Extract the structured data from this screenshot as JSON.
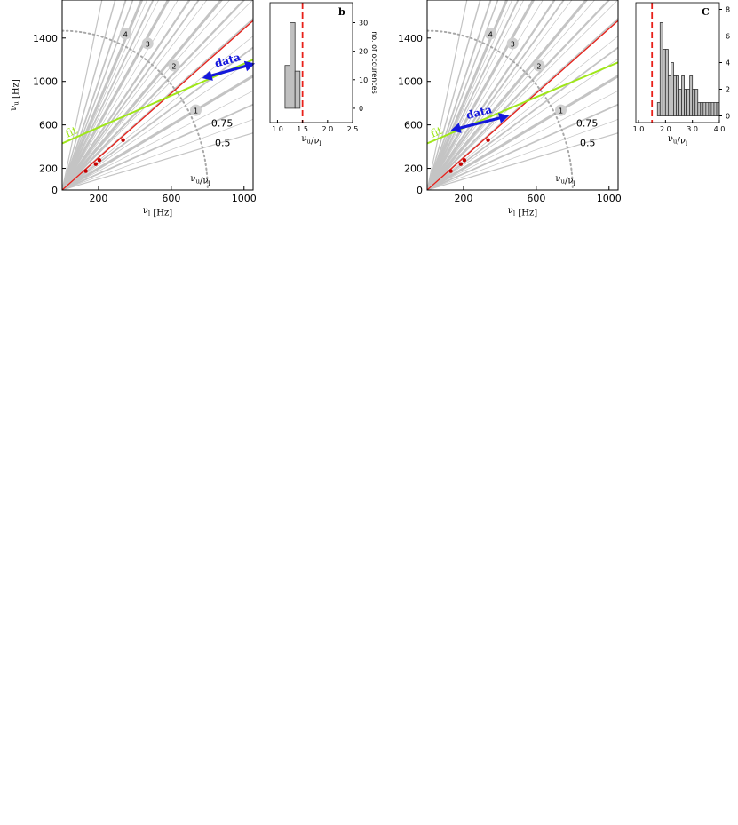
{
  "chart_data": [
    {
      "type": "scatter",
      "panel": "left-main",
      "xlabel": "νl [Hz]",
      "ylabel": "νu [Hz]",
      "xlim": [
        0,
        1050
      ],
      "ylim": [
        0,
        1750
      ],
      "x_ticks": [
        200,
        600,
        1000
      ],
      "y_ticks": [
        200,
        600,
        1000,
        1400
      ],
      "origin_label": "0",
      "points": [
        {
          "x": 130,
          "y": 175
        },
        {
          "x": 185,
          "y": 240
        },
        {
          "x": 205,
          "y": 275
        },
        {
          "x": 335,
          "y": 460
        }
      ],
      "red_line": {
        "x": [
          0,
          1050
        ],
        "y": [
          0,
          1560
        ]
      },
      "fit_line": {
        "label": "fit",
        "x": [
          0,
          1050
        ],
        "y": [
          430,
          1200
        ]
      },
      "data_arrow": {
        "label": "data",
        "x": [
          770,
          1060
        ],
        "y": [
          1030,
          1165
        ]
      },
      "arc_label": "νu/νl",
      "ratio_labels": [
        "4",
        "3",
        "2",
        "1",
        "0.75",
        "0.5"
      ]
    },
    {
      "type": "bar",
      "panel": "b",
      "panel_label": "b",
      "xlabel": "νu/νl",
      "ylabel": "no. of occurences",
      "xlim": [
        0.85,
        2.5
      ],
      "ylim": [
        -5,
        37
      ],
      "x_ticks": [
        "1.0",
        "1.5",
        "2.0",
        "2.5"
      ],
      "y_ticks": [
        "0",
        "10",
        "20",
        "30"
      ],
      "bins": [
        {
          "x0": 1.15,
          "x1": 1.25,
          "count": 15
        },
        {
          "x0": 1.25,
          "x1": 1.35,
          "count": 30
        },
        {
          "x0": 1.35,
          "x1": 1.45,
          "count": 13
        }
      ],
      "dashed_line_x": 1.5
    },
    {
      "type": "scatter",
      "panel": "right-main",
      "xlabel": "νl [Hz]",
      "ylabel": "",
      "xlim": [
        0,
        1050
      ],
      "ylim": [
        0,
        1750
      ],
      "x_ticks": [
        200,
        600,
        1000
      ],
      "y_ticks": [
        200,
        600,
        1000,
        1400
      ],
      "origin_label": "0",
      "points": [
        {
          "x": 130,
          "y": 175
        },
        {
          "x": 185,
          "y": 240
        },
        {
          "x": 205,
          "y": 275
        },
        {
          "x": 335,
          "y": 460
        }
      ],
      "red_line": {
        "x": [
          0,
          1050
        ],
        "y": [
          0,
          1560
        ]
      },
      "fit_line": {
        "label": "fit",
        "x": [
          0,
          1050
        ],
        "y": [
          430,
          1175
        ]
      },
      "data_arrow": {
        "label": "data",
        "x": [
          130,
          450
        ],
        "y": [
          550,
          685
        ]
      },
      "arc_label": "νu/νl",
      "ratio_labels": [
        "4",
        "3",
        "2",
        "1",
        "0.75",
        "0.5"
      ]
    },
    {
      "type": "bar",
      "panel": "c",
      "panel_label": "C",
      "xlabel": "νu/νl",
      "ylabel": "no. of occurences",
      "xlim": [
        0.9,
        4.0
      ],
      "ylim": [
        -0.5,
        8.5
      ],
      "x_ticks": [
        "1.0",
        "2.0",
        "3.0",
        "4.0"
      ],
      "y_ticks": [
        "0",
        "2",
        "4",
        "6",
        "8"
      ],
      "bins": [
        {
          "x0": 1.7,
          "x1": 1.8,
          "count": 1
        },
        {
          "x0": 1.8,
          "x1": 1.9,
          "count": 7
        },
        {
          "x0": 1.9,
          "x1": 2.0,
          "count": 5
        },
        {
          "x0": 2.0,
          "x1": 2.1,
          "count": 5
        },
        {
          "x0": 2.1,
          "x1": 2.2,
          "count": 3
        },
        {
          "x0": 2.2,
          "x1": 2.3,
          "count": 4
        },
        {
          "x0": 2.3,
          "x1": 2.4,
          "count": 3
        },
        {
          "x0": 2.4,
          "x1": 2.5,
          "count": 3
        },
        {
          "x0": 2.5,
          "x1": 2.6,
          "count": 2
        },
        {
          "x0": 2.6,
          "x1": 2.7,
          "count": 3
        },
        {
          "x0": 2.7,
          "x1": 2.8,
          "count": 2
        },
        {
          "x0": 2.8,
          "x1": 2.9,
          "count": 2
        },
        {
          "x0": 2.9,
          "x1": 3.0,
          "count": 3
        },
        {
          "x0": 3.0,
          "x1": 3.1,
          "count": 2
        },
        {
          "x0": 3.1,
          "x1": 3.2,
          "count": 2
        },
        {
          "x0": 3.2,
          "x1": 3.3,
          "count": 1
        },
        {
          "x0": 3.3,
          "x1": 3.4,
          "count": 1
        },
        {
          "x0": 3.4,
          "x1": 3.5,
          "count": 1
        },
        {
          "x0": 3.5,
          "x1": 3.6,
          "count": 1
        },
        {
          "x0": 3.6,
          "x1": 3.7,
          "count": 1
        },
        {
          "x0": 3.7,
          "x1": 3.8,
          "count": 1
        },
        {
          "x0": 3.8,
          "x1": 3.9,
          "count": 1
        },
        {
          "x0": 3.9,
          "x1": 4.0,
          "count": 1
        }
      ],
      "dashed_line_x": 1.5
    }
  ],
  "colors": {
    "red": "#e8201a",
    "fit": "#9fe619",
    "data": "#1418dc",
    "ray": "#c4c4c4",
    "point": "#c40000",
    "bar": "#c0c0c0"
  }
}
